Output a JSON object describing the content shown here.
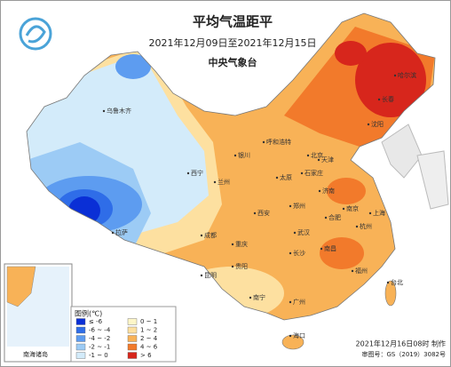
{
  "header": {
    "title": "平均气温距平",
    "subtitle": "2021年12月09日至2021年12月15日",
    "agency": "中央气象台"
  },
  "legend": {
    "title": "图例(℃)",
    "items": [
      {
        "label": "≤ -6",
        "color": "#0a2fd6"
      },
      {
        "label": "-6 ~ -4",
        "color": "#2f6de8"
      },
      {
        "label": "-4 ~ -2",
        "color": "#5d9cf0"
      },
      {
        "label": "-2 ~ -1",
        "color": "#9ccbf5"
      },
      {
        "label": "-1 ~ 0",
        "color": "#d3ebfa"
      },
      {
        "label": "0 ~ 1",
        "color": "#fdf6c8"
      },
      {
        "label": "1 ~ 2",
        "color": "#fde0a0"
      },
      {
        "label": "2 ~ 4",
        "color": "#f8b257"
      },
      {
        "label": "4 ~ 6",
        "color": "#f27a2b"
      },
      {
        "label": "> 6",
        "color": "#d7261c"
      }
    ]
  },
  "inset": {
    "label": "南海诸岛"
  },
  "footer": {
    "made": "2021年12月16日08时 制作",
    "approval": "审图号：GS（2019）3082号"
  },
  "cities": [
    "乌鲁木齐",
    "呼和浩特",
    "哈尔滨",
    "长春",
    "沈阳",
    "北京",
    "天津",
    "石家庄",
    "太原",
    "济南",
    "郑州",
    "西安",
    "兰州",
    "西宁",
    "银川",
    "拉萨",
    "成都",
    "重庆",
    "贵阳",
    "昆明",
    "南宁",
    "广州",
    "海口",
    "长沙",
    "南昌",
    "福州",
    "台北",
    "杭州",
    "南京",
    "合肥",
    "武汉",
    "上海"
  ]
}
